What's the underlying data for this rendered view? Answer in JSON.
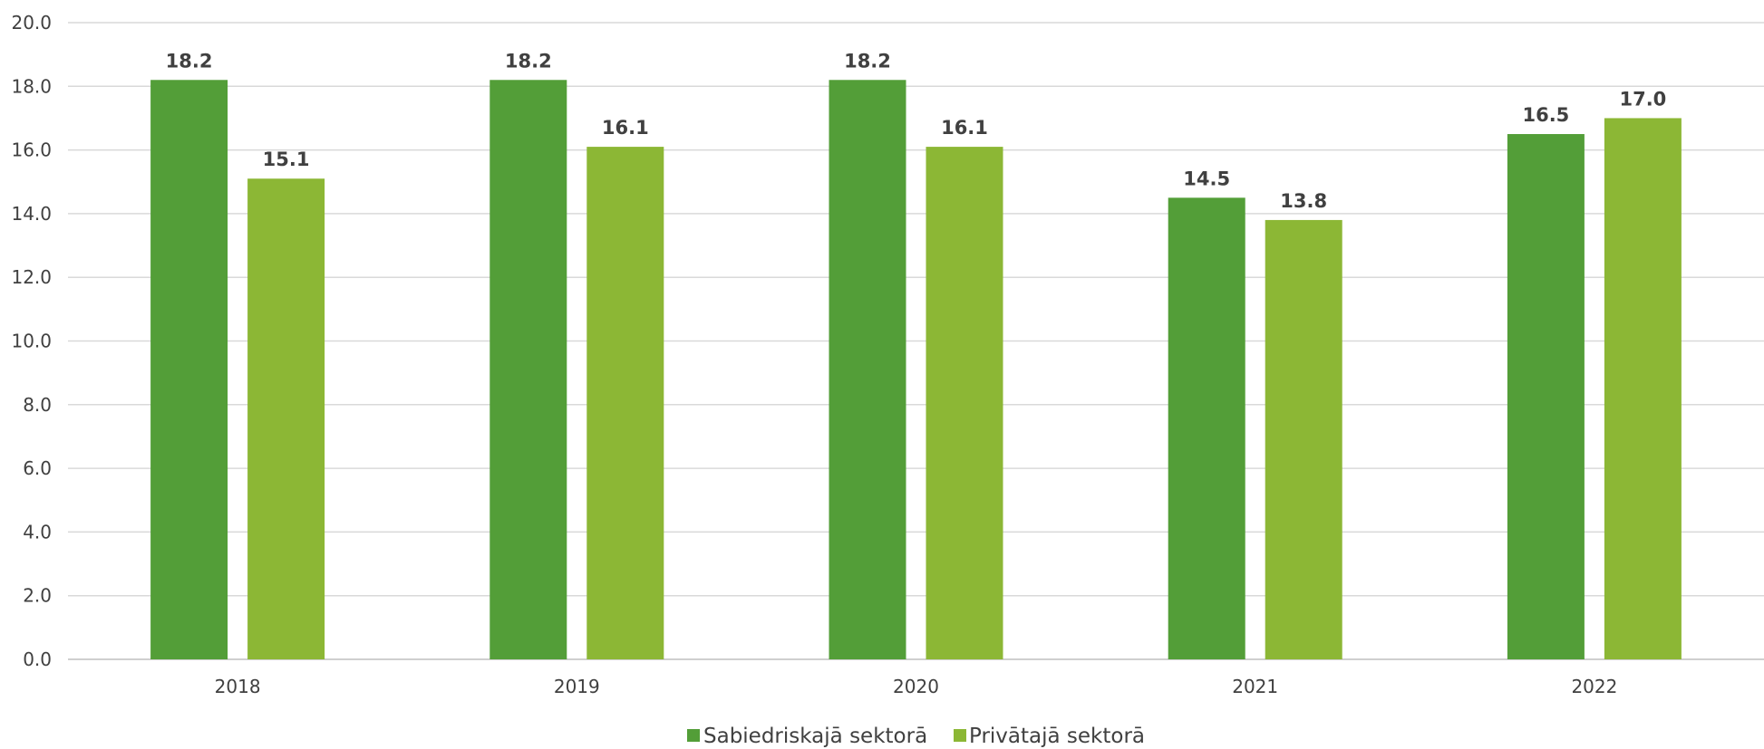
{
  "chart_data": {
    "type": "bar",
    "categories": [
      "2018",
      "2019",
      "2020",
      "2021",
      "2022"
    ],
    "series": [
      {
        "name": "Sabiedriskajā sektorā",
        "values": [
          18.2,
          18.2,
          18.2,
          14.5,
          16.5
        ],
        "color": "#539e38"
      },
      {
        "name": "Privātajā sektorā",
        "values": [
          15.1,
          16.1,
          16.1,
          13.8,
          17.0
        ],
        "color": "#8cb735"
      }
    ],
    "title": "",
    "xlabel": "",
    "ylabel": "",
    "ylim": [
      0,
      20
    ],
    "ytick_step": 2,
    "value_decimals": 1,
    "grid": true,
    "legend_position": "bottom"
  }
}
